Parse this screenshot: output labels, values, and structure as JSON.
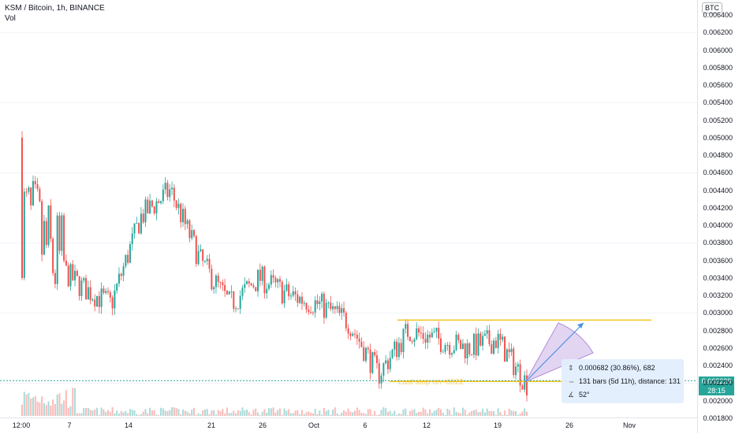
{
  "legend": {
    "symbol_line": "KSM / Bitcoin, 1h, BINANCE",
    "indicator": "Vol"
  },
  "price_axis": {
    "unit": "BTC",
    "ticks": [
      "0.006400",
      "0.006200",
      "0.006000",
      "0.005800",
      "0.005600",
      "0.005400",
      "0.005200",
      "0.005000",
      "0.004800",
      "0.004600",
      "0.004400",
      "0.004200",
      "0.004000",
      "0.003800",
      "0.003600",
      "0.003400",
      "0.003200",
      "0.003000",
      "0.002800",
      "0.002600",
      "0.002400",
      "0.002200",
      "0.002000",
      "0.001800"
    ],
    "last_price": "0.002229",
    "countdown": "28:15"
  },
  "time_axis": {
    "labels": [
      "12:00",
      "7",
      "14",
      "21",
      "26",
      "Oct",
      "6",
      "12",
      "19",
      "26",
      "Nov"
    ]
  },
  "measure": {
    "price_change": "0.000682 (30.86%), 682",
    "bars": "131 bars (5d 11h), distance: 131",
    "angle": "52°"
  },
  "annotation": {
    "text": "Last stop on -0022"
  },
  "colors": {
    "up": "#26a69a",
    "down": "#ef5350",
    "level_line": "#f5c518",
    "last_price": "#26a69a",
    "measure_fill": "#d6c3ec",
    "measure_line": "#4a90e2"
  },
  "chart_data": {
    "type": "candlestick",
    "series": "KSM/BTC 1h (approximate closing path)",
    "x": [
      "12:00",
      "7",
      "14",
      "21",
      "26",
      "Oct",
      "6",
      "12",
      "19"
    ],
    "close_path": [
      0.0041,
      0.0036,
      0.0033,
      0.0031,
      0.0041,
      0.0044,
      0.0036,
      0.0031,
      0.0034,
      0.0032,
      0.0031,
      0.0029,
      0.0023,
      0.0028,
      0.0027,
      0.0026,
      0.0027,
      0.0022
    ],
    "resistance": 0.00292,
    "support": 0.00222,
    "ylim": [
      0.0018,
      0.0065
    ]
  }
}
